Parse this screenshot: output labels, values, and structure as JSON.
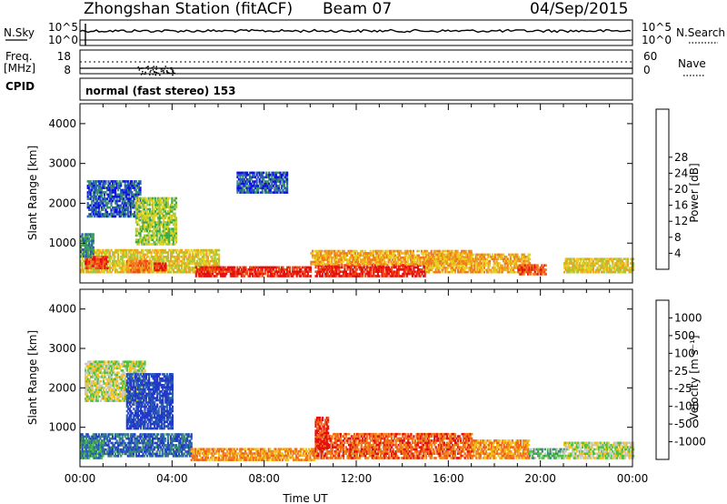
{
  "header": {
    "station": "Zhongshan Station (fitACF)",
    "beam": "Beam 07",
    "date": "04/Sep/2015"
  },
  "top_panels": {
    "nsky_label": "N.Sky",
    "nsky_ticks": [
      "10^5",
      "10^0"
    ],
    "nsearch_label": "N.Search",
    "nsearch_ticks": [
      "10^5",
      "10^0"
    ],
    "freq_label": "Freq.",
    "freq_unit": "[MHz]",
    "freq_ticks": [
      "18",
      "8"
    ],
    "nave_label": "Nave",
    "nave_ticks": [
      "60",
      "0"
    ],
    "cpid_label": "CPID",
    "cpid_text": "normal (fast stereo) 153"
  },
  "chart_data": [
    {
      "type": "heatmap",
      "name": "power",
      "xlabel": "",
      "ylabel": "Slant Range [km]",
      "xlim": [
        "00:00",
        "24:00"
      ],
      "ylim": [
        0,
        4500
      ],
      "yticks": [
        "1000",
        "2000",
        "3000",
        "4000"
      ],
      "colorbar_label": "Power [dB]",
      "colorbar_ticks": [
        "4",
        "8",
        "12",
        "16",
        "20",
        "24",
        "28"
      ],
      "colorbar_colors": [
        "#1010e6",
        "#2a58b8",
        "#3b8f6e",
        "#3caa48",
        "#a6c83a",
        "#e6d21e",
        "#f0a21c",
        "#f07a1e",
        "#f04a14",
        "#e41010"
      ],
      "blobs": [
        {
          "t0": 0.0,
          "t1": 6.0,
          "r0": 300,
          "r1": 900,
          "level": 5
        },
        {
          "t0": 0.2,
          "t1": 1.2,
          "r0": 400,
          "r1": 700,
          "level": 8
        },
        {
          "t0": 2.0,
          "t1": 3.0,
          "r0": 300,
          "r1": 600,
          "level": 7
        },
        {
          "t0": 3.2,
          "t1": 3.7,
          "r0": 350,
          "r1": 550,
          "level": 9
        },
        {
          "t0": 5.0,
          "t1": 10.0,
          "r0": 200,
          "r1": 450,
          "level": 9
        },
        {
          "t0": 10.2,
          "t1": 15.0,
          "r0": 200,
          "r1": 500,
          "level": 9
        },
        {
          "t0": 10.0,
          "t1": 17.0,
          "r0": 500,
          "r1": 850,
          "level": 6
        },
        {
          "t0": 15.0,
          "t1": 19.5,
          "r0": 300,
          "r1": 750,
          "level": 6
        },
        {
          "t0": 19.0,
          "t1": 20.2,
          "r0": 250,
          "r1": 500,
          "level": 8
        },
        {
          "t0": 21.0,
          "t1": 24.0,
          "r0": 300,
          "r1": 650,
          "level": 5
        },
        {
          "t0": 0.3,
          "t1": 2.6,
          "r0": 1700,
          "r1": 2600,
          "level": 1
        },
        {
          "t0": 2.4,
          "t1": 4.2,
          "r0": 1000,
          "r1": 2200,
          "level": 4
        },
        {
          "t0": 0.0,
          "t1": 0.6,
          "r0": 700,
          "r1": 1300,
          "level": 2
        },
        {
          "t0": 6.8,
          "t1": 9.0,
          "r0": 2300,
          "r1": 2800,
          "level": 1
        }
      ]
    },
    {
      "type": "heatmap",
      "name": "velocity",
      "xlabel": "Time UT",
      "ylabel": "Slant Range [km]",
      "xlim": [
        "00:00",
        "24:00"
      ],
      "ylim": [
        0,
        4500
      ],
      "xticks": [
        "00:00",
        "04:00",
        "08:00",
        "12:00",
        "16:00",
        "20:00",
        "00:00"
      ],
      "yticks": [
        "1000",
        "2000",
        "3000",
        "4000"
      ],
      "colorbar_label": "Velocity [m s⁻¹]",
      "colorbar_ticks": [
        "1000",
        "500",
        "100",
        "25",
        "-25",
        "-100",
        "-500",
        "-1000"
      ],
      "colorbar_colors": [
        "#2238c8",
        "#2a62b2",
        "#3b8f6e",
        "#4ec23c",
        "#c8c8c8",
        "#f2c21a",
        "#f08a1a",
        "#f06418",
        "#e41010"
      ],
      "blobs": [
        {
          "t0": 0.0,
          "t1": 4.8,
          "r0": 300,
          "r1": 900,
          "level": 1
        },
        {
          "t0": 0.0,
          "t1": 1.0,
          "r0": 250,
          "r1": 700,
          "level": 2
        },
        {
          "t0": 4.8,
          "t1": 10.2,
          "r0": 200,
          "r1": 500,
          "level": 6
        },
        {
          "t0": 10.2,
          "t1": 17.0,
          "r0": 250,
          "r1": 900,
          "level": 7
        },
        {
          "t0": 17.0,
          "t1": 19.5,
          "r0": 250,
          "r1": 700,
          "level": 6
        },
        {
          "t0": 19.5,
          "t1": 21.0,
          "r0": 250,
          "r1": 500,
          "level": 3
        },
        {
          "t0": 21.0,
          "t1": 24.0,
          "r0": 250,
          "r1": 650,
          "level": 4
        },
        {
          "t0": 0.2,
          "t1": 2.8,
          "r0": 1700,
          "r1": 2700,
          "level": 4
        },
        {
          "t0": 2.0,
          "t1": 4.0,
          "r0": 1000,
          "r1": 2400,
          "level": 0
        },
        {
          "t0": 10.2,
          "t1": 10.8,
          "r0": 500,
          "r1": 1300,
          "level": 8
        }
      ]
    }
  ]
}
